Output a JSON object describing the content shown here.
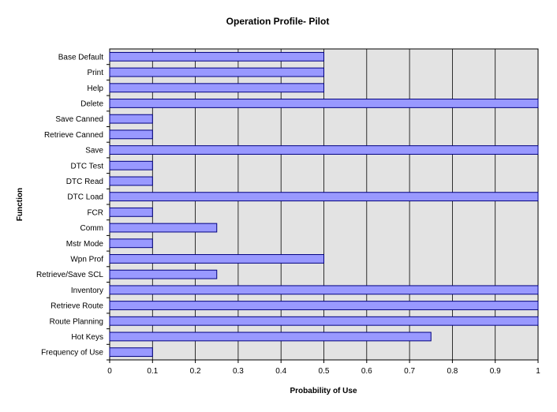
{
  "chart_data": {
    "type": "bar",
    "orientation": "horizontal",
    "title": "Operation Profile- Pilot",
    "xlabel": "Probability of Use",
    "ylabel": "Function",
    "xlim": [
      0,
      1
    ],
    "xticks": [
      "0",
      "0.1",
      "0.2",
      "0.3",
      "0.4",
      "0.5",
      "0.6",
      "0.7",
      "0.8",
      "0.9",
      "1"
    ],
    "grid": "vertical",
    "legend": "none",
    "colors": {
      "bar_fill": "#9999ff",
      "bar_stroke": "#000080",
      "plot_bg": "#e3e3e3",
      "grid": "#000000"
    },
    "categories": [
      "Base Default",
      "Print",
      "Help",
      "Delete",
      "Save Canned",
      "Retrieve Canned",
      "Save",
      "DTC Test",
      "DTC Read",
      "DTC Load",
      "FCR",
      "Comm",
      "Mstr Mode",
      "Wpn Prof",
      "Retrieve/Save SCL",
      "Inventory",
      "Retrieve Route",
      "Route Planning",
      "Hot Keys",
      "Frequency of Use"
    ],
    "values": [
      0.5,
      0.5,
      0.5,
      1.0,
      0.1,
      0.1,
      1.0,
      0.1,
      0.1,
      1.0,
      0.1,
      0.25,
      0.1,
      0.5,
      0.25,
      1.0,
      1.0,
      1.0,
      0.75,
      0.1
    ]
  }
}
